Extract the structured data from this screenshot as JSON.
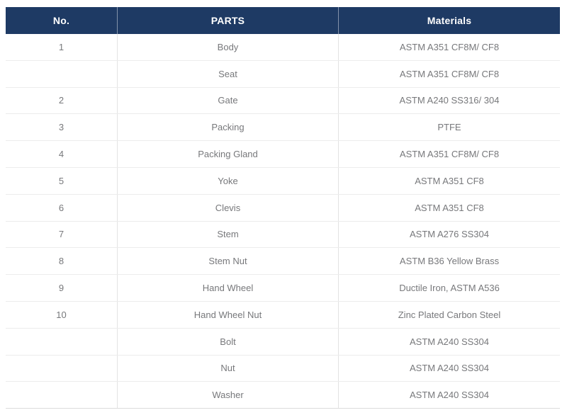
{
  "table": {
    "columns": {
      "no": "No.",
      "parts": "PARTS",
      "materials": "Materials"
    },
    "rows": [
      {
        "no": "1",
        "part": "Body",
        "material": "ASTM A351 CF8M/ CF8"
      },
      {
        "no": "",
        "part": "Seat",
        "material": "ASTM A351 CF8M/ CF8"
      },
      {
        "no": "2",
        "part": "Gate",
        "material": "ASTM A240 SS316/ 304"
      },
      {
        "no": "3",
        "part": "Packing",
        "material": "PTFE"
      },
      {
        "no": "4",
        "part": "Packing Gland",
        "material": "ASTM A351 CF8M/ CF8"
      },
      {
        "no": "5",
        "part": "Yoke",
        "material": "ASTM A351 CF8"
      },
      {
        "no": "6",
        "part": "Clevis",
        "material": "ASTM A351 CF8"
      },
      {
        "no": "7",
        "part": "Stem",
        "material": "ASTM A276 SS304"
      },
      {
        "no": "8",
        "part": "Stem Nut",
        "material": "ASTM B36 Yellow Brass"
      },
      {
        "no": "9",
        "part": "Hand Wheel",
        "material": "Ductile Iron, ASTM A536"
      },
      {
        "no": "10",
        "part": "Hand Wheel Nut",
        "material": "Zinc Plated Carbon Steel"
      },
      {
        "no": "",
        "part": "Bolt",
        "material": "ASTM A240 SS304"
      },
      {
        "no": "",
        "part": "Nut",
        "material": "ASTM A240 SS304"
      },
      {
        "no": "",
        "part": "Washer",
        "material": "ASTM A240 SS304"
      }
    ],
    "colors": {
      "header_bg": "#1e3a64",
      "header_text": "#ffffff",
      "body_text": "#77787b",
      "grid_line": "#ececec",
      "column_divider": "#e3e3e3"
    }
  }
}
